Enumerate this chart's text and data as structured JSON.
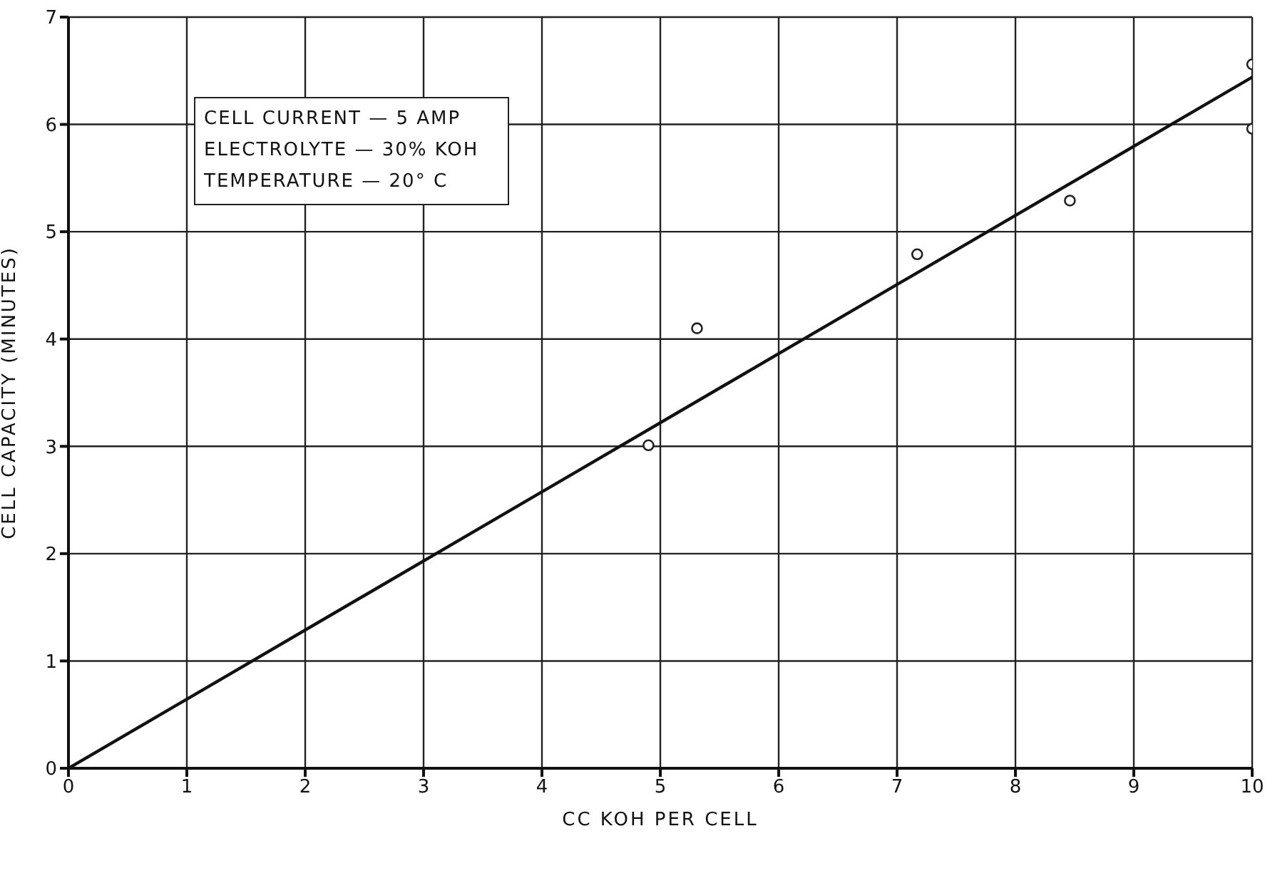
{
  "chart_data": {
    "type": "scatter",
    "xlabel": "CC KOH PER CELL",
    "ylabel": "CELL CAPACITY (MINUTES)",
    "xlim": [
      0,
      10
    ],
    "ylim": [
      0,
      7
    ],
    "xticks": [
      0,
      1,
      2,
      3,
      4,
      5,
      6,
      7,
      8,
      9,
      10
    ],
    "yticks": [
      0,
      1,
      2,
      3,
      4,
      5,
      6,
      7
    ],
    "grid": true,
    "annotations": [
      "CELL CURRENT — 5 AMP",
      "ELECTROLYTE — 30% KOH",
      "TEMPERATURE — 20° C"
    ],
    "series": [
      {
        "color": "#222222",
        "marker": "circle",
        "x": [
          4.9,
          5.31,
          7.17,
          8.46,
          10,
          10
        ],
        "values": [
          3.01,
          4.1,
          4.79,
          5.29,
          6.56,
          5.96
        ]
      },
      {
        "type": "line",
        "color": "#111111",
        "marker": "none",
        "line_style": "solid",
        "x": [
          0,
          10
        ],
        "values": [
          0,
          6.44
        ]
      }
    ]
  }
}
